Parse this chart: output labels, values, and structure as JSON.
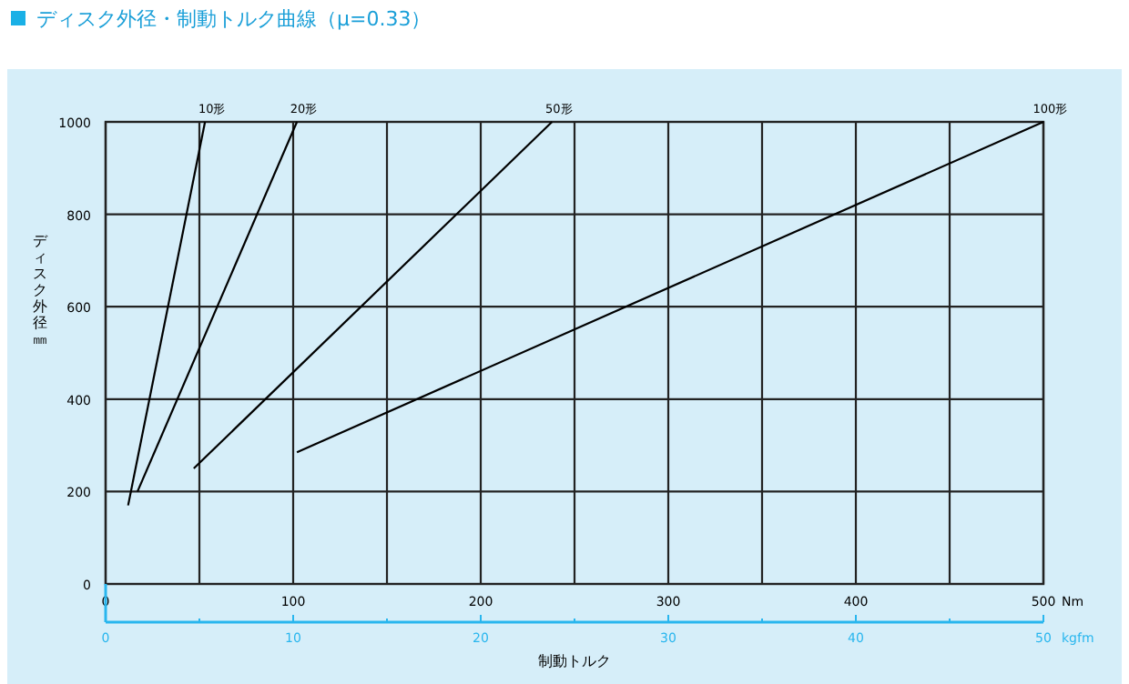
{
  "chart_data": {
    "type": "line",
    "title": "ディスク外径・制動トルク曲線（μ=0.33）",
    "xlabel": "制動トルク",
    "ylabel": "ディスク外径㎜",
    "x2label": "kgfm",
    "annotations": [
      "Nm"
    ],
    "xlim": [
      0,
      500
    ],
    "xticks": [
      0,
      {
        "value": 50,
        "label": null
      },
      100,
      {
        "value": 150,
        "label": null
      },
      200,
      {
        "value": 250,
        "label": null
      },
      300,
      {
        "value": 350,
        "label": null
      },
      400,
      {
        "value": 450,
        "label": null
      },
      500
    ],
    "x2lim": [
      0,
      50
    ],
    "x2ticks": [
      0,
      {
        "value": 5,
        "label": null
      },
      10,
      {
        "value": 15,
        "label": null
      },
      20,
      {
        "value": 25,
        "label": null
      },
      30,
      {
        "value": 35,
        "label": null
      },
      40,
      {
        "value": 45,
        "label": null
      },
      50
    ],
    "ylim": [
      0,
      1000
    ],
    "yticks": [
      0,
      200,
      400,
      600,
      800,
      1000
    ],
    "grid": true,
    "line_style": "solid",
    "series": [
      {
        "name": "10形",
        "color": "#000000",
        "x": [
          12,
          53
        ],
        "values": [
          170,
          1000
        ]
      },
      {
        "name": "20形",
        "color": "#000000",
        "x": [
          17,
          102
        ],
        "values": [
          200,
          1000
        ]
      },
      {
        "name": "50形",
        "color": "#000000",
        "x": [
          47,
          238
        ],
        "values": [
          250,
          1000
        ]
      },
      {
        "name": "100形",
        "color": "#000000",
        "x": [
          102,
          500
        ],
        "values": [
          285,
          1000
        ]
      }
    ]
  }
}
